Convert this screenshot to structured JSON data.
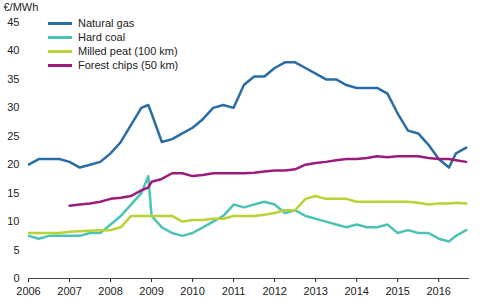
{
  "chart_data": {
    "type": "line",
    "y_label": "€/MWh",
    "x": [
      2006,
      2006.25,
      2006.5,
      2006.75,
      2007,
      2007.25,
      2007.5,
      2007.75,
      2008,
      2008.25,
      2008.5,
      2008.75,
      2008.92,
      2009,
      2009.25,
      2009.5,
      2009.75,
      2010,
      2010.25,
      2010.5,
      2010.75,
      2011,
      2011.25,
      2011.5,
      2011.75,
      2012,
      2012.25,
      2012.5,
      2012.75,
      2013,
      2013.25,
      2013.5,
      2013.75,
      2014,
      2014.25,
      2014.5,
      2014.75,
      2015,
      2015.25,
      2015.5,
      2015.75,
      2016,
      2016.25,
      2016.42,
      2016.67
    ],
    "series": [
      {
        "name": "Natural gas",
        "color": "#2a6ca6",
        "values": [
          20,
          21,
          21,
          21,
          20.5,
          19.5,
          20,
          20.5,
          22,
          24,
          27,
          30,
          30.5,
          29,
          24,
          24.5,
          25.5,
          26.5,
          28,
          30,
          30.5,
          30,
          34,
          35.5,
          35.5,
          37,
          38,
          38,
          37,
          36,
          35,
          35,
          34,
          33.5,
          33.5,
          33.5,
          32.5,
          29,
          26,
          25.5,
          23.5,
          21,
          19.5,
          22,
          23
        ]
      },
      {
        "name": "Hard coal",
        "color": "#4dc3b6",
        "values": [
          7.5,
          7,
          7.5,
          7.5,
          7.5,
          7.5,
          8,
          8,
          9.5,
          11,
          13,
          15,
          18,
          11,
          9,
          8,
          7.5,
          8,
          9,
          10,
          11,
          13,
          12.5,
          13,
          13.5,
          13,
          11.5,
          12,
          11,
          10.5,
          10,
          9.5,
          9,
          9.5,
          9,
          9,
          9.5,
          8,
          8.5,
          8,
          8,
          7,
          6.5,
          7.5,
          8.5
        ]
      },
      {
        "name": "Milled peat (100 km)",
        "color": "#b7d334",
        "values": [
          8,
          8,
          8,
          8,
          8.2,
          8.3,
          8.4,
          8.5,
          8.5,
          9,
          11,
          11,
          11,
          11,
          11,
          11,
          10,
          10.3,
          10.3,
          10.5,
          10.5,
          11,
          11,
          11,
          11.2,
          11.5,
          12,
          12,
          14,
          14.5,
          14,
          14,
          14,
          13.5,
          13.5,
          13.5,
          13.5,
          13.5,
          13.5,
          13.3,
          13,
          13.2,
          13.2,
          13.3,
          13.2
        ]
      },
      {
        "name": "Forest chips (50 km)",
        "color": "#9c1c7c",
        "values": [
          null,
          null,
          null,
          null,
          12.8,
          13,
          13.2,
          13.5,
          14,
          14.2,
          14.5,
          15.5,
          16,
          17,
          17.5,
          18.5,
          18.5,
          18,
          18.2,
          18.5,
          18.5,
          18.5,
          18.5,
          18.6,
          18.8,
          19,
          19,
          19.2,
          20,
          20.3,
          20.5,
          20.8,
          21,
          21,
          21.2,
          21.5,
          21.3,
          21.5,
          21.5,
          21.5,
          21.2,
          21,
          21,
          20.8,
          20.5
        ]
      }
    ],
    "xlim": [
      2006,
      2016.75
    ],
    "xticks": [
      2006,
      2007,
      2008,
      2009,
      2010,
      2011,
      2012,
      2013,
      2014,
      2015,
      2016
    ],
    "ylim": [
      0,
      45
    ],
    "yticks": [
      0,
      5,
      10,
      15,
      20,
      25,
      30,
      35,
      40,
      45
    ],
    "grid": false,
    "legend": "top-left"
  }
}
